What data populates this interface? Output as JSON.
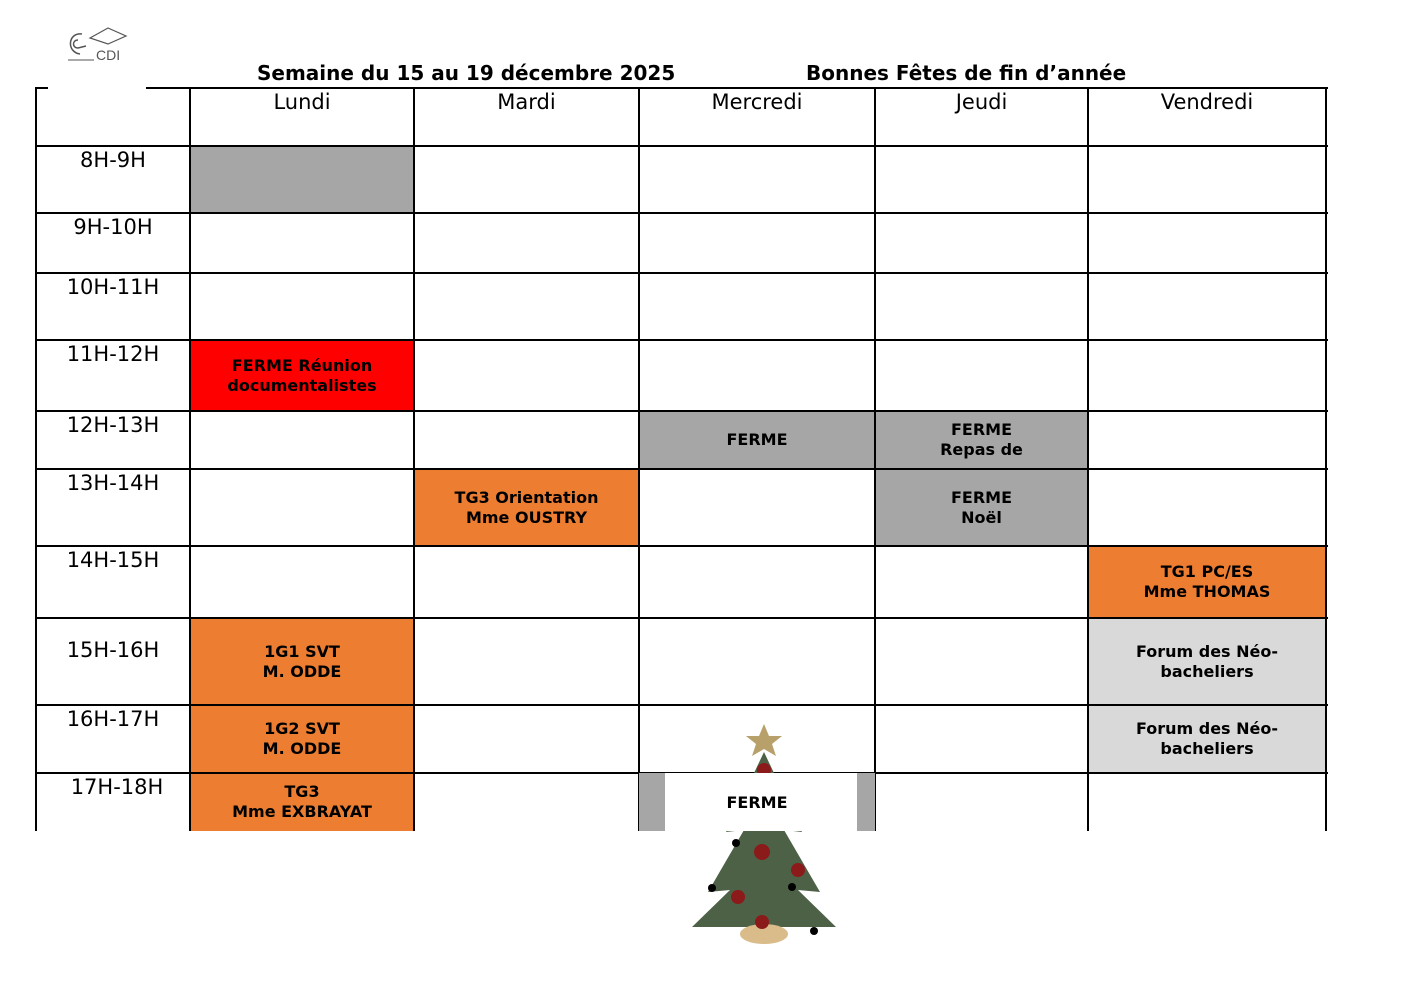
{
  "header": {
    "week_title": "Semaine du  15 au 19 décembre 2025",
    "greeting": "Bonnes Fêtes de fin d’année",
    "logo_text": "CDI"
  },
  "colors": {
    "closed": "#a6a6a6",
    "meeting": "#ff0000",
    "class": "#ed7d31",
    "event": "#d9d9d9"
  },
  "days": [
    "Lundi",
    "Mardi",
    "Mercredi",
    "Jeudi",
    "Vendredi"
  ],
  "slots": [
    "8H-9H",
    "9H-10H",
    "10H-11H",
    "11H-12H",
    "12H-13H",
    "13H-14H",
    "14H-15H",
    "15H-16H",
    "16H-17H",
    "17H-18H"
  ],
  "cells": [
    {
      "slot": 0,
      "day": 0,
      "text": "",
      "kind": "closed"
    },
    {
      "slot": 3,
      "day": 0,
      "text": "FERME Réunion\ndocumentalistes",
      "kind": "meeting"
    },
    {
      "slot": 4,
      "day": 2,
      "text": "FERME",
      "kind": "closed"
    },
    {
      "slot": 4,
      "day": 3,
      "text": "FERME\nRepas de",
      "kind": "closed"
    },
    {
      "slot": 5,
      "day": 1,
      "text": "TG3 Orientation\nMme OUSTRY",
      "kind": "class"
    },
    {
      "slot": 5,
      "day": 3,
      "text": "FERME\nNoël",
      "kind": "closed"
    },
    {
      "slot": 6,
      "day": 4,
      "text": "TG1 PC/ES\nMme THOMAS",
      "kind": "class"
    },
    {
      "slot": 7,
      "day": 0,
      "text": "1G1 SVT\nM. ODDE",
      "kind": "class"
    },
    {
      "slot": 7,
      "day": 4,
      "text": "Forum des Néo-\nbacheliers",
      "kind": "event"
    },
    {
      "slot": 8,
      "day": 0,
      "text": "1G2 SVT\nM. ODDE",
      "kind": "class"
    },
    {
      "slot": 8,
      "day": 4,
      "text": "Forum des Néo-\nbacheliers",
      "kind": "event"
    },
    {
      "slot": 9,
      "day": 0,
      "text": "TG3\nMme EXBRAYAT",
      "kind": "class"
    },
    {
      "slot": 9,
      "day": 2,
      "text": "FERME",
      "kind": "closed-tree"
    }
  ],
  "decoration": "christmas-tree"
}
